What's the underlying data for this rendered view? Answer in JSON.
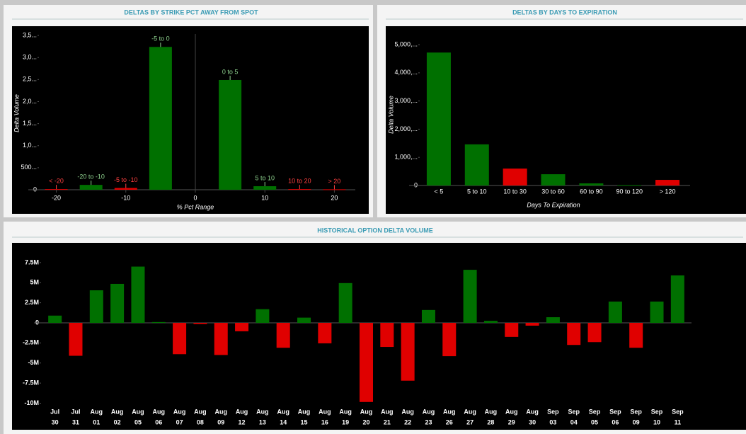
{
  "chart_data": [
    {
      "type": "bar",
      "title": "DELTAS BY STRIKE PCT AWAY FROM SPOT",
      "xlabel": "% Pct Range",
      "ylabel": "Delta Volume",
      "categories": [
        "< -20",
        "-20 to -10",
        "-5 to -10",
        "-5 to 0",
        "0 to 5",
        "5 to 10",
        "10 to 20",
        "> 20"
      ],
      "x": [
        -20,
        -15,
        -10,
        -5,
        5,
        10,
        15,
        20
      ],
      "values": [
        15000,
        110000,
        40000,
        3240000,
        2490000,
        80000,
        15000,
        10000
      ],
      "colors": [
        "#e00000",
        "#007000",
        "#e00000",
        "#007000",
        "#007000",
        "#007000",
        "#e00000",
        "#e00000"
      ],
      "label_colors": [
        "#ff4040",
        "#8fd38f",
        "#ff4040",
        "#8fd38f",
        "#8fd38f",
        "#8fd38f",
        "#ff4040",
        "#ff4040"
      ],
      "xlim": [
        -22.5,
        22.5
      ],
      "xticks": [
        -20,
        -10,
        0,
        10,
        20
      ],
      "ylim": [
        0,
        3630000
      ],
      "yticks": [
        0,
        {
          "value": 500000,
          "label": "500..."
        },
        {
          "value": 1000000,
          "label": "1,0..."
        },
        {
          "value": 1500000,
          "label": "1,5..."
        },
        {
          "value": 2000000,
          "label": "2,0..."
        },
        {
          "value": 2500000,
          "label": "2,5..."
        },
        {
          "value": 3000000,
          "label": "3,0..."
        },
        {
          "value": 3500000,
          "label": "3,5..."
        }
      ]
    },
    {
      "type": "bar",
      "title": "DELTAS BY DAYS TO EXPIRATION",
      "xlabel": "Days To Expiration",
      "ylabel": "Delta Volume",
      "categories": [
        "< 5",
        "5 to 10",
        "10 to 30",
        "30 to 60",
        "60 to 90",
        "90 to 120",
        "> 120"
      ],
      "values": [
        4720000,
        1460000,
        600000,
        400000,
        75000,
        15000,
        200000
      ],
      "colors": [
        "#007000",
        "#007000",
        "#e00000",
        "#007000",
        "#007000",
        "#007000",
        "#e00000"
      ],
      "ylim": [
        0,
        5530000
      ],
      "yticks": [
        0,
        {
          "value": 1000000,
          "label": "1,000,..."
        },
        {
          "value": 2000000,
          "label": "2,000,..."
        },
        {
          "value": 3000000,
          "label": "3,000,..."
        },
        {
          "value": 4000000,
          "label": "4,000,..."
        },
        {
          "value": 5000000,
          "label": "5,000,..."
        }
      ]
    },
    {
      "type": "bar",
      "title": "HISTORICAL OPTION DELTA VOLUME",
      "categories": [
        [
          "Jul",
          "30"
        ],
        [
          "Jul",
          "31"
        ],
        [
          "Aug",
          "01"
        ],
        [
          "Aug",
          "02"
        ],
        [
          "Aug",
          "05"
        ],
        [
          "Aug",
          "06"
        ],
        [
          "Aug",
          "07"
        ],
        [
          "Aug",
          "08"
        ],
        [
          "Aug",
          "09"
        ],
        [
          "Aug",
          "12"
        ],
        [
          "Aug",
          "13"
        ],
        [
          "Aug",
          "14"
        ],
        [
          "Aug",
          "15"
        ],
        [
          "Aug",
          "16"
        ],
        [
          "Aug",
          "19"
        ],
        [
          "Aug",
          "20"
        ],
        [
          "Aug",
          "21"
        ],
        [
          "Aug",
          "22"
        ],
        [
          "Aug",
          "23"
        ],
        [
          "Aug",
          "26"
        ],
        [
          "Aug",
          "27"
        ],
        [
          "Aug",
          "28"
        ],
        [
          "Aug",
          "29"
        ],
        [
          "Aug",
          "30"
        ],
        [
          "Sep",
          "03"
        ],
        [
          "Sep",
          "04"
        ],
        [
          "Sep",
          "05"
        ],
        [
          "Sep",
          "06"
        ],
        [
          "Sep",
          "09"
        ],
        [
          "Sep",
          "10"
        ],
        [
          "Sep",
          "11"
        ]
      ],
      "values": [
        900000,
        -4100000,
        4050000,
        4850000,
        7000000,
        100000,
        -3900000,
        -150000,
        -4000000,
        -1050000,
        1700000,
        -3100000,
        650000,
        -2550000,
        4950000,
        -9850000,
        -3000000,
        -7200000,
        1600000,
        -4150000,
        6600000,
        250000,
        -1750000,
        -350000,
        700000,
        -2750000,
        -2400000,
        2650000,
        -3100000,
        2650000,
        5900000
      ],
      "color_positive": "#007000",
      "color_negative": "#e00000",
      "ylim": [
        -10750000,
        9340000
      ],
      "yticks": [
        {
          "value": -10000000,
          "label": "-10M"
        },
        {
          "value": -7500000,
          "label": "-7.5M"
        },
        {
          "value": -5000000,
          "label": "-5M"
        },
        {
          "value": -2500000,
          "label": "-2.5M"
        },
        0,
        {
          "value": 2500000,
          "label": "2.5M"
        },
        {
          "value": 5000000,
          "label": "5M"
        },
        {
          "value": 7500000,
          "label": "7.5M"
        }
      ]
    }
  ]
}
